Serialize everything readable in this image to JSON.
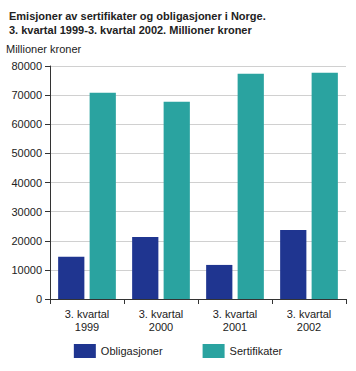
{
  "chart_data": {
    "type": "bar",
    "title": "Emisjoner av sertifikater og obligasjoner i Norge.\n3. kvartal 1999-3. kvartal 2002. Millioner kroner",
    "y_label": "Millioner kroner",
    "categories": [
      "3. kvartal\n1999",
      "3. kvartal\n2000",
      "3. kvartal\n2001",
      "3. kvartal\n2002"
    ],
    "series": [
      {
        "name": "Obligasjoner",
        "color": "#1f3590",
        "values": [
          14500,
          21300,
          11700,
          23700
        ]
      },
      {
        "name": "Sertifikater",
        "color": "#2aa3a0",
        "values": [
          70800,
          67700,
          77300,
          77700
        ]
      }
    ],
    "ylim": [
      0,
      80000
    ],
    "yticks": [
      0,
      10000,
      20000,
      30000,
      40000,
      50000,
      60000,
      70000,
      80000
    ],
    "grid": true,
    "legend": "bottom"
  }
}
